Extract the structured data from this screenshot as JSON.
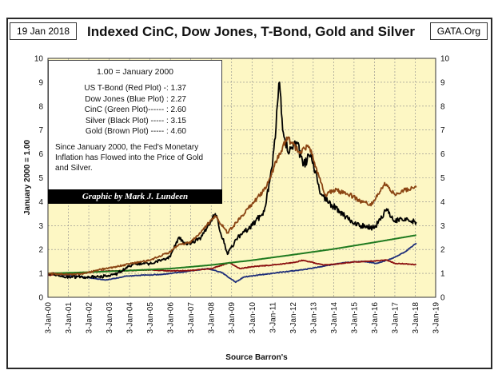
{
  "header": {
    "date": "19 Jan 2018",
    "site": "GATA.Org",
    "title": "Indexed CinC, Dow Jones, T-Bond, Gold and Silver"
  },
  "legend_box": {
    "heading": "1.00 = January 2000",
    "lines": [
      "US T-Bond (Red Plot) -: 1.37",
      "Dow Jones (Blue Plot) : 2.27",
      "CinC (Green Plot)------ : 2.60",
      "Silver (Black Plot) ----- : 3.15",
      "Gold (Brown Plot) ----- : 4.60"
    ],
    "note": "Since January 2000, the Fed's Monetary Inflation has Flowed into the Price of Gold and Silver.",
    "credit": "Graphic by Mark J. Lundeen"
  },
  "chart_data": {
    "type": "line",
    "ylabel": "January 2000 = 1.00",
    "xlabel": "Source Barron's",
    "ylim": [
      0,
      10
    ],
    "yticks": [
      0,
      1,
      2,
      3,
      4,
      5,
      6,
      7,
      8,
      9,
      10
    ],
    "xlim": [
      2000,
      2019
    ],
    "xticks": [
      "3-Jan-00",
      "3-Jan-01",
      "3-Jan-02",
      "3-Jan-03",
      "3-Jan-04",
      "3-Jan-05",
      "3-Jan-06",
      "3-Jan-07",
      "3-Jan-08",
      "3-Jan-09",
      "3-Jan-10",
      "3-Jan-11",
      "3-Jan-12",
      "3-Jan-13",
      "3-Jan-14",
      "3-Jan-15",
      "3-Jan-16",
      "3-Jan-17",
      "3-Jan-18",
      "3-Jan-19"
    ],
    "grid": true,
    "plot_bg": "#fdf7c4",
    "series": [
      {
        "color": "#1f2f7a",
        "x": [
          2000,
          2000.5,
          2001,
          2001.7,
          2002.5,
          2002.8,
          2003.2,
          2003.8,
          2004.5,
          2005.5,
          2006.5,
          2007.8,
          2008.5,
          2009.2,
          2009.6,
          2010.5,
          2011.5,
          2012.5,
          2013.5,
          2014.5,
          2015.5,
          2016.1,
          2016.8,
          2017.5,
          2018.05
        ],
        "y": [
          1.0,
          0.96,
          0.92,
          0.86,
          0.76,
          0.72,
          0.78,
          0.88,
          0.92,
          0.95,
          1.05,
          1.2,
          1.05,
          0.63,
          0.85,
          0.95,
          1.06,
          1.15,
          1.3,
          1.45,
          1.5,
          1.42,
          1.6,
          1.9,
          2.27
        ]
      },
      {
        "color": "#8b1010",
        "x": [
          2000,
          2001,
          2002,
          2003,
          2004,
          2005,
          2006,
          2007,
          2008,
          2008.9,
          2009.4,
          2010,
          2011,
          2012,
          2012.5,
          2013.5,
          2014,
          2015,
          2016,
          2016.6,
          2017,
          2018.05
        ],
        "y": [
          0.92,
          1.0,
          1.05,
          1.1,
          1.12,
          1.15,
          1.1,
          1.12,
          1.2,
          1.45,
          1.2,
          1.28,
          1.35,
          1.45,
          1.55,
          1.35,
          1.38,
          1.48,
          1.52,
          1.56,
          1.42,
          1.37
        ]
      },
      {
        "color": "#1f7a1f",
        "x": [
          2000,
          2002,
          2004,
          2006,
          2008,
          2009,
          2010,
          2012,
          2014,
          2016,
          2018.05
        ],
        "y": [
          1.0,
          1.05,
          1.12,
          1.2,
          1.35,
          1.45,
          1.55,
          1.78,
          2.02,
          2.3,
          2.6
        ]
      },
      {
        "color": "#000000",
        "x": [
          2000,
          2001,
          2001.8,
          2002.5,
          2003.3,
          2004,
          2004.3,
          2005,
          2006,
          2006.4,
          2006.8,
          2007.5,
          2008.2,
          2008.8,
          2009.3,
          2010,
          2010.6,
          2011.0,
          2011.35,
          2011.5,
          2011.8,
          2012.2,
          2012.5,
          2012.9,
          2013.3,
          2013.7,
          2014,
          2014.8,
          2015.3,
          2016,
          2016.6,
          2017,
          2017.5,
          2018.05
        ],
        "y": [
          1.0,
          0.85,
          0.85,
          0.85,
          0.95,
          1.3,
          1.4,
          1.4,
          1.7,
          2.5,
          2.2,
          2.5,
          3.5,
          1.8,
          2.5,
          3.0,
          3.6,
          5.5,
          9.0,
          7.0,
          6.0,
          6.5,
          5.5,
          6.0,
          4.5,
          4.0,
          3.8,
          3.2,
          3.0,
          2.9,
          3.7,
          3.2,
          3.3,
          3.15
        ]
      },
      {
        "color": "#8b4513",
        "x": [
          2000,
          2001,
          2001.8,
          2002.5,
          2003.2,
          2004,
          2005,
          2006,
          2006.4,
          2007,
          2008.2,
          2008.8,
          2009.5,
          2010,
          2010.7,
          2011.1,
          2011.7,
          2012.3,
          2012.8,
          2013.3,
          2013.6,
          2014,
          2014.8,
          2015.3,
          2015.9,
          2016.5,
          2017,
          2017.5,
          2018.05
        ],
        "y": [
          1.0,
          0.95,
          1.0,
          1.15,
          1.25,
          1.4,
          1.55,
          1.9,
          2.2,
          2.3,
          3.4,
          2.7,
          3.4,
          3.9,
          4.6,
          5.5,
          6.7,
          6.1,
          6.3,
          5.0,
          4.3,
          4.5,
          4.3,
          4.0,
          3.9,
          4.8,
          4.3,
          4.5,
          4.6
        ]
      }
    ]
  }
}
